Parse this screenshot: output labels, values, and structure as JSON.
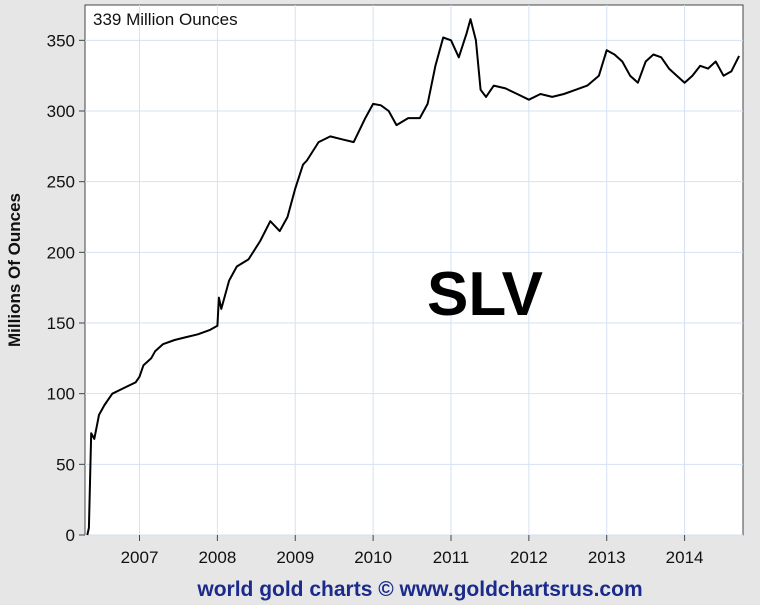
{
  "status_label": "339 Million Ounces",
  "annotation": "SLV",
  "footer": "world gold charts © www.goldchartsrus.com",
  "colors": {
    "background": "#e6e6e6",
    "plot_bg": "#ffffff",
    "grid": "#d4e2f4",
    "line": "#000000",
    "footer_text": "#1a2b8c"
  },
  "chart_data": {
    "type": "line",
    "title": "",
    "xlabel": "",
    "ylabel": "Millions Of Ounces",
    "xlim": [
      2006.3,
      2014.75
    ],
    "ylim": [
      0,
      375
    ],
    "x_ticks": [
      2007,
      2008,
      2009,
      2010,
      2011,
      2012,
      2013,
      2014
    ],
    "x_tick_labels": [
      "2007",
      "2008",
      "2009",
      "2010",
      "2011",
      "2012",
      "2013",
      "2014"
    ],
    "y_ticks": [
      0,
      50,
      100,
      150,
      200,
      250,
      300,
      350
    ],
    "y_tick_labels": [
      "0",
      "50",
      "100",
      "150",
      "200",
      "250",
      "300",
      "350"
    ],
    "grid": true,
    "series": [
      {
        "x": [
          2006.33,
          2006.35,
          2006.38,
          2006.42,
          2006.48,
          2006.55,
          2006.65,
          2006.8,
          2006.95,
          2007.0,
          2007.05,
          2007.15,
          2007.2,
          2007.3,
          2007.45,
          2007.6,
          2007.75,
          2007.9,
          2008.0,
          2008.02,
          2008.05,
          2008.15,
          2008.25,
          2008.4,
          2008.55,
          2008.68,
          2008.8,
          2008.9,
          2009.0,
          2009.1,
          2009.15,
          2009.3,
          2009.45,
          2009.6,
          2009.75,
          2009.9,
          2010.0,
          2010.1,
          2010.2,
          2010.3,
          2010.45,
          2010.6,
          2010.7,
          2010.8,
          2010.9,
          2011.0,
          2011.1,
          2011.2,
          2011.25,
          2011.32,
          2011.38,
          2011.45,
          2011.55,
          2011.7,
          2011.85,
          2012.0,
          2012.15,
          2012.3,
          2012.45,
          2012.6,
          2012.75,
          2012.9,
          2013.0,
          2013.1,
          2013.2,
          2013.3,
          2013.4,
          2013.5,
          2013.6,
          2013.7,
          2013.8,
          2013.9,
          2014.0,
          2014.1,
          2014.2,
          2014.3,
          2014.4,
          2014.5,
          2014.6,
          2014.7
        ],
        "y": [
          0,
          5,
          72,
          68,
          85,
          92,
          100,
          104,
          108,
          112,
          120,
          125,
          130,
          135,
          138,
          140,
          142,
          145,
          148,
          168,
          160,
          180,
          190,
          195,
          208,
          222,
          215,
          225,
          245,
          262,
          265,
          278,
          282,
          280,
          278,
          295,
          305,
          304,
          300,
          290,
          295,
          295,
          305,
          332,
          352,
          350,
          338,
          355,
          365,
          350,
          315,
          310,
          318,
          316,
          312,
          308,
          312,
          310,
          312,
          315,
          318,
          325,
          343,
          340,
          335,
          325,
          320,
          335,
          340,
          338,
          330,
          325,
          320,
          325,
          332,
          330,
          335,
          325,
          328,
          339
        ]
      }
    ]
  }
}
